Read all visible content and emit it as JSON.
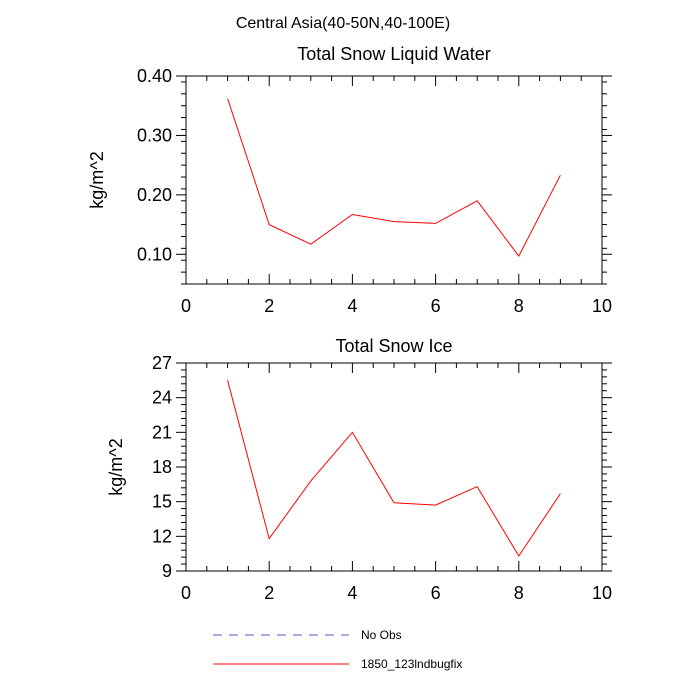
{
  "figure": {
    "main_title": "Central Asia(40-50N,40-100E)"
  },
  "chart_data": [
    {
      "type": "line",
      "title": "Total Snow Liquid Water",
      "xlabel": "",
      "ylabel": "kg/m^2",
      "xlim": [
        0,
        10
      ],
      "ylim": [
        0.05,
        0.4
      ],
      "xticks": [
        0,
        2,
        4,
        6,
        8,
        10
      ],
      "xtick_labels": [
        "0",
        "2",
        "4",
        "6",
        "8",
        "10"
      ],
      "yticks": [
        0.1,
        0.2,
        0.3,
        0.4
      ],
      "ytick_labels": [
        "0.10",
        "0.20",
        "0.30",
        "0.40"
      ],
      "grid": false,
      "series": [
        {
          "name": "1850_123lndbugfix",
          "color": "#ff0000",
          "x": [
            1,
            2,
            3,
            4,
            5,
            6,
            7,
            8,
            9
          ],
          "y": [
            0.362,
            0.15,
            0.117,
            0.167,
            0.155,
            0.152,
            0.19,
            0.097,
            0.233
          ]
        }
      ]
    },
    {
      "type": "line",
      "title": "Total Snow Ice",
      "xlabel": "",
      "ylabel": "kg/m^2",
      "xlim": [
        0,
        10
      ],
      "ylim": [
        9,
        27
      ],
      "xticks": [
        0,
        2,
        4,
        6,
        8,
        10
      ],
      "xtick_labels": [
        "0",
        "2",
        "4",
        "6",
        "8",
        "10"
      ],
      "yticks": [
        9,
        12,
        15,
        18,
        21,
        24,
        27
      ],
      "ytick_labels": [
        "9",
        "12",
        "15",
        "18",
        "21",
        "24",
        "27"
      ],
      "grid": false,
      "series": [
        {
          "name": "1850_123lndbugfix",
          "color": "#ff0000",
          "x": [
            1,
            2,
            3,
            4,
            5,
            6,
            7,
            8,
            9
          ],
          "y": [
            25.5,
            11.8,
            16.8,
            21.0,
            14.9,
            14.7,
            16.3,
            10.3,
            15.7
          ]
        }
      ]
    }
  ],
  "legend": {
    "placement": "bottom",
    "entries": [
      {
        "label": "No Obs",
        "style": "dashed",
        "color": "#5a5ab4"
      },
      {
        "label": "1850_123lndbugfix",
        "style": "solid",
        "color": "#ff0000"
      }
    ]
  }
}
